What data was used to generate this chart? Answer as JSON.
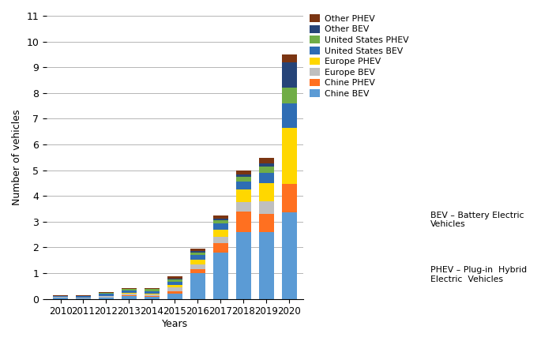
{
  "years": [
    "2010",
    "2011",
    "2012",
    "2013",
    "2014",
    "2015",
    "2016",
    "2017",
    "2018",
    "2019",
    "2020"
  ],
  "stack_data": {
    "Chine BEV": [
      0.05,
      0.01,
      0.04,
      0.1,
      0.08,
      0.2,
      1.0,
      1.8,
      2.6,
      2.6,
      3.35
    ],
    "Chine PHEV": [
      0.0,
      0.0,
      0.0,
      0.03,
      0.03,
      0.08,
      0.15,
      0.35,
      0.8,
      0.7,
      1.1
    ],
    "Europe BEV": [
      0.02,
      0.03,
      0.06,
      0.07,
      0.07,
      0.15,
      0.2,
      0.25,
      0.35,
      0.5,
      0.0
    ],
    "Europe PHEV": [
      0.0,
      0.0,
      0.01,
      0.02,
      0.03,
      0.1,
      0.18,
      0.3,
      0.5,
      0.7,
      2.2
    ],
    "United States BEV": [
      0.03,
      0.06,
      0.08,
      0.09,
      0.09,
      0.13,
      0.17,
      0.22,
      0.3,
      0.4,
      0.95
    ],
    "United States PHEV": [
      0.01,
      0.02,
      0.04,
      0.06,
      0.07,
      0.09,
      0.09,
      0.12,
      0.2,
      0.25,
      0.6
    ],
    "Other BEV": [
      0.0,
      0.0,
      0.01,
      0.01,
      0.01,
      0.04,
      0.07,
      0.08,
      0.08,
      0.1,
      1.0
    ],
    "Other PHEV": [
      0.02,
      0.02,
      0.02,
      0.04,
      0.04,
      0.09,
      0.09,
      0.12,
      0.17,
      0.22,
      0.3
    ]
  },
  "colors": {
    "Chine BEV": "#5B9BD5",
    "Chine PHEV": "#FF7020",
    "Europe BEV": "#BFBFBF",
    "Europe PHEV": "#FFD700",
    "United States BEV": "#2E6DB4",
    "United States PHEV": "#70AD47",
    "Other BEV": "#264478",
    "Other PHEV": "#7B3512"
  },
  "legend_order": [
    "Other PHEV",
    "Other BEV",
    "United States PHEV",
    "United States BEV",
    "Europe PHEV",
    "Europe BEV",
    "Chine PHEV",
    "Chine BEV"
  ],
  "stack_order": [
    "Chine BEV",
    "Chine PHEV",
    "Europe BEV",
    "Europe PHEV",
    "United States BEV",
    "United States PHEV",
    "Other BEV",
    "Other PHEV"
  ],
  "ylabel": "Number of vehicles",
  "xlabel": "Years",
  "ylim": [
    0,
    11
  ],
  "yticks": [
    0,
    1,
    2,
    3,
    4,
    5,
    6,
    7,
    8,
    9,
    10,
    11
  ],
  "note1": "BEV – Battery Electric\nVehicles",
  "note2": "PHEV – Plug-in  Hybrid\nElectric  Vehicles"
}
